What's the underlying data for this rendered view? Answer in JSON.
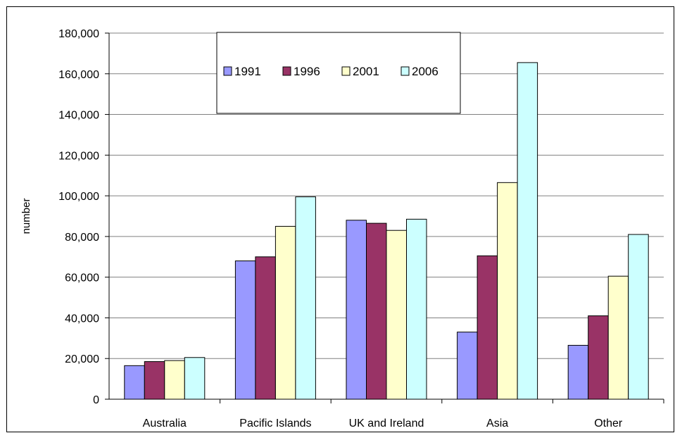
{
  "chart_data": {
    "type": "bar",
    "title": "",
    "xlabel": "",
    "ylabel": "number",
    "categories": [
      "Australia",
      "Pacific Islands",
      "UK and Ireland",
      "Asia",
      "Other"
    ],
    "series": [
      {
        "name": "1991",
        "color": "#9999FF",
        "values": [
          16500,
          68000,
          88000,
          33000,
          26500
        ]
      },
      {
        "name": "1996",
        "color": "#993366",
        "values": [
          18500,
          70000,
          86500,
          70500,
          41000
        ]
      },
      {
        "name": "2001",
        "color": "#FFFFCC",
        "values": [
          19000,
          85000,
          83000,
          106500,
          60500
        ]
      },
      {
        "name": "2006",
        "color": "#CCFFFF",
        "values": [
          20500,
          99500,
          88500,
          165500,
          81000
        ]
      }
    ],
    "ylim": [
      0,
      180000
    ],
    "yticks": [
      0,
      20000,
      40000,
      60000,
      80000,
      100000,
      120000,
      140000,
      160000,
      180000
    ],
    "ytick_labels": [
      "0",
      "20,000",
      "40,000",
      "60,000",
      "80,000",
      "100,000",
      "120,000",
      "140,000",
      "160,000",
      "180,000"
    ],
    "grid": true,
    "legend_position": "top-center"
  }
}
